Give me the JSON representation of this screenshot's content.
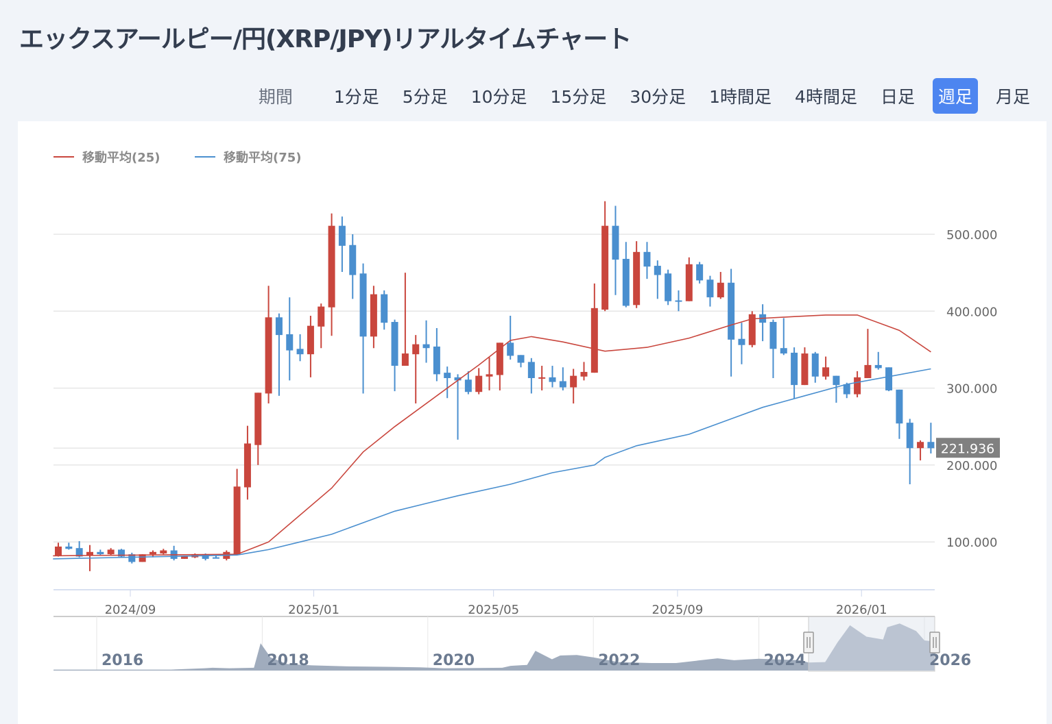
{
  "title": "エックスアールピー/円(XRP/JPY)リアルタイムチャート",
  "periods": {
    "label": "期間",
    "tabs": [
      {
        "label": "1分足",
        "active": false
      },
      {
        "label": "5分足",
        "active": false
      },
      {
        "label": "10分足",
        "active": false
      },
      {
        "label": "15分足",
        "active": false
      },
      {
        "label": "30分足",
        "active": false
      },
      {
        "label": "1時間足",
        "active": false
      },
      {
        "label": "4時間足",
        "active": false
      },
      {
        "label": "日足",
        "active": false
      },
      {
        "label": "週足",
        "active": true
      },
      {
        "label": "月足",
        "active": false
      }
    ]
  },
  "colors": {
    "up": "#c9463d",
    "down": "#4a8fcf",
    "ma25": "#c9463d",
    "ma75": "#4a8fcf",
    "accent": "#4d85f0"
  },
  "chart_data": {
    "type": "candlestick",
    "title": "エックスアールピー/円(XRP/JPY)",
    "ylim": [
      40,
      560
    ],
    "y_ticks": [
      "100.000",
      "200.000",
      "300.000",
      "400.000",
      "500.000"
    ],
    "y_tick_values": [
      100,
      200,
      300,
      400,
      500
    ],
    "x_ticks": [
      {
        "label": "2024/09",
        "index": 6.85
      },
      {
        "label": "2025/01",
        "index": 24.3
      },
      {
        "label": "2025/05",
        "index": 41.4
      },
      {
        "label": "2025/09",
        "index": 58.9
      },
      {
        "label": "2026/01",
        "index": 76.4
      }
    ],
    "legend": [
      {
        "name": "移動平均(25)",
        "key": "ma25"
      },
      {
        "name": "移動平均(75)",
        "key": "ma75"
      }
    ],
    "legend_position": "top-left",
    "last_price": "221.936",
    "last_price_value": 221.936,
    "ohlc": [
      [
        82,
        99,
        81,
        94
      ],
      [
        94,
        99,
        90,
        91
      ],
      [
        92,
        101,
        80,
        81
      ],
      [
        82,
        96,
        62,
        87
      ],
      [
        87,
        90,
        82,
        84
      ],
      [
        84,
        92,
        83,
        90
      ],
      [
        90,
        91,
        80,
        81
      ],
      [
        84,
        86,
        72,
        74
      ],
      [
        74,
        84,
        74,
        84
      ],
      [
        84,
        89,
        80,
        87
      ],
      [
        85,
        91,
        84,
        89
      ],
      [
        89,
        95,
        76,
        78
      ],
      [
        78,
        81,
        78,
        81
      ],
      [
        80,
        85,
        79,
        84
      ],
      [
        84,
        85,
        76,
        78
      ],
      [
        80,
        82,
        79,
        79
      ],
      [
        78,
        89,
        76,
        87
      ],
      [
        84,
        195,
        84,
        172
      ],
      [
        171,
        251,
        155,
        228
      ],
      [
        226,
        294,
        200,
        294
      ],
      [
        293,
        433,
        280,
        392
      ],
      [
        392,
        397,
        290,
        369
      ],
      [
        370,
        418,
        310,
        349
      ],
      [
        351,
        370,
        335,
        344
      ],
      [
        344,
        394,
        314,
        381
      ],
      [
        380,
        410,
        352,
        406
      ],
      [
        405,
        527,
        368,
        511
      ],
      [
        511,
        523,
        451,
        485
      ],
      [
        486,
        500,
        416,
        447
      ],
      [
        449,
        462,
        293,
        367
      ],
      [
        367,
        433,
        352,
        422
      ],
      [
        422,
        427,
        376,
        385
      ],
      [
        386,
        389,
        296,
        329
      ],
      [
        329,
        450,
        329,
        345
      ],
      [
        344,
        369,
        280,
        357
      ],
      [
        357,
        388,
        333,
        352
      ],
      [
        354,
        378,
        309,
        318
      ],
      [
        320,
        328,
        287,
        313
      ],
      [
        314,
        318,
        233,
        310
      ],
      [
        311,
        322,
        292,
        295
      ],
      [
        295,
        326,
        292,
        316
      ],
      [
        315,
        340,
        297,
        318
      ],
      [
        317,
        359,
        297,
        359
      ],
      [
        359,
        394,
        337,
        342
      ],
      [
        343,
        343,
        327,
        333
      ],
      [
        334,
        339,
        293,
        313
      ],
      [
        313,
        329,
        297,
        314
      ],
      [
        314,
        329,
        301,
        308
      ],
      [
        309,
        327,
        297,
        301
      ],
      [
        301,
        325,
        280,
        316
      ],
      [
        315,
        334,
        310,
        321
      ],
      [
        320,
        436,
        320,
        404
      ],
      [
        402,
        543,
        400,
        511
      ],
      [
        511,
        537,
        421,
        467
      ],
      [
        468,
        490,
        405,
        407
      ],
      [
        408,
        491,
        404,
        477
      ],
      [
        477,
        490,
        442,
        458
      ],
      [
        459,
        466,
        416,
        447
      ],
      [
        449,
        454,
        408,
        413
      ],
      [
        414,
        427,
        400,
        413
      ],
      [
        413,
        470,
        413,
        461
      ],
      [
        461,
        464,
        436,
        440
      ],
      [
        441,
        446,
        406,
        418
      ],
      [
        418,
        451,
        416,
        437
      ],
      [
        437,
        455,
        315,
        363
      ],
      [
        364,
        385,
        331,
        356
      ],
      [
        356,
        400,
        353,
        396
      ],
      [
        396,
        409,
        361,
        385
      ],
      [
        386,
        389,
        313,
        351
      ],
      [
        352,
        391,
        343,
        345
      ],
      [
        346,
        353,
        286,
        304
      ],
      [
        304,
        353,
        304,
        345
      ],
      [
        345,
        347,
        307,
        315
      ],
      [
        315,
        341,
        311,
        327
      ],
      [
        316,
        316,
        281,
        304
      ],
      [
        305,
        307,
        287,
        292
      ],
      [
        292,
        322,
        288,
        314
      ],
      [
        313,
        377,
        313,
        330
      ],
      [
        330,
        347,
        324,
        326
      ],
      [
        327,
        327,
        296,
        297
      ],
      [
        298,
        298,
        234,
        254
      ],
      [
        255,
        260,
        175,
        222
      ],
      [
        222,
        232,
        206,
        230
      ],
      [
        230,
        255,
        215,
        221.936
      ]
    ],
    "ma25": [
      [
        -0.5,
        82
      ],
      [
        17,
        84
      ],
      [
        20,
        100
      ],
      [
        26,
        170
      ],
      [
        29,
        217
      ],
      [
        32,
        250
      ],
      [
        36,
        290
      ],
      [
        40,
        330
      ],
      [
        43,
        362
      ],
      [
        45,
        367
      ],
      [
        48,
        360
      ],
      [
        52,
        348
      ],
      [
        56,
        353
      ],
      [
        60,
        365
      ],
      [
        64,
        382
      ],
      [
        66,
        390
      ],
      [
        70,
        393
      ],
      [
        73,
        395
      ],
      [
        76,
        395
      ],
      [
        77,
        390
      ],
      [
        80,
        375
      ],
      [
        83,
        347
      ]
    ],
    "ma75": [
      [
        -0.5,
        78
      ],
      [
        17,
        83
      ],
      [
        20,
        90
      ],
      [
        23,
        100
      ],
      [
        26,
        110
      ],
      [
        29,
        125
      ],
      [
        32,
        140
      ],
      [
        35,
        150
      ],
      [
        38,
        160
      ],
      [
        43,
        175
      ],
      [
        47,
        190
      ],
      [
        51,
        200
      ],
      [
        52,
        210
      ],
      [
        55,
        225
      ],
      [
        60,
        240
      ],
      [
        64,
        260
      ],
      [
        67,
        275
      ],
      [
        71,
        290
      ],
      [
        75,
        305
      ],
      [
        79,
        315
      ],
      [
        83,
        325
      ]
    ],
    "navigator": {
      "labels": [
        "2016",
        "2018",
        "2020",
        "2022",
        "2024",
        "2026"
      ],
      "label_years": [
        2016,
        2018,
        2020,
        2022,
        2024,
        2026
      ],
      "series": [
        [
          2015.48,
          10
        ],
        [
          2016.9,
          10
        ],
        [
          2017.3,
          25
        ],
        [
          2017.4,
          30
        ],
        [
          2017.6,
          25
        ],
        [
          2017.9,
          30
        ],
        [
          2017.98,
          290
        ],
        [
          2018.1,
          140
        ],
        [
          2018.3,
          70
        ],
        [
          2018.6,
          55
        ],
        [
          2019,
          45
        ],
        [
          2019.5,
          40
        ],
        [
          2019.9,
          35
        ],
        [
          2020.2,
          25
        ],
        [
          2020.9,
          30
        ],
        [
          2021.0,
          50
        ],
        [
          2021.2,
          60
        ],
        [
          2021.3,
          210
        ],
        [
          2021.5,
          120
        ],
        [
          2021.6,
          160
        ],
        [
          2021.8,
          165
        ],
        [
          2022.0,
          140
        ],
        [
          2022.3,
          90
        ],
        [
          2022.7,
          80
        ],
        [
          2023.0,
          80
        ],
        [
          2023.5,
          130
        ],
        [
          2023.7,
          110
        ],
        [
          2024.0,
          125
        ],
        [
          2024.5,
          110
        ],
        [
          2024.6,
          85
        ],
        [
          2024.8,
          90
        ],
        [
          2024.95,
          300
        ],
        [
          2025.1,
          480
        ],
        [
          2025.3,
          360
        ],
        [
          2025.5,
          330
        ],
        [
          2025.55,
          460
        ],
        [
          2025.7,
          500
        ],
        [
          2025.9,
          420
        ],
        [
          2026.0,
          320
        ],
        [
          2026.1,
          310
        ]
      ],
      "selected_range": [
        2024.6,
        2026.1
      ]
    }
  }
}
